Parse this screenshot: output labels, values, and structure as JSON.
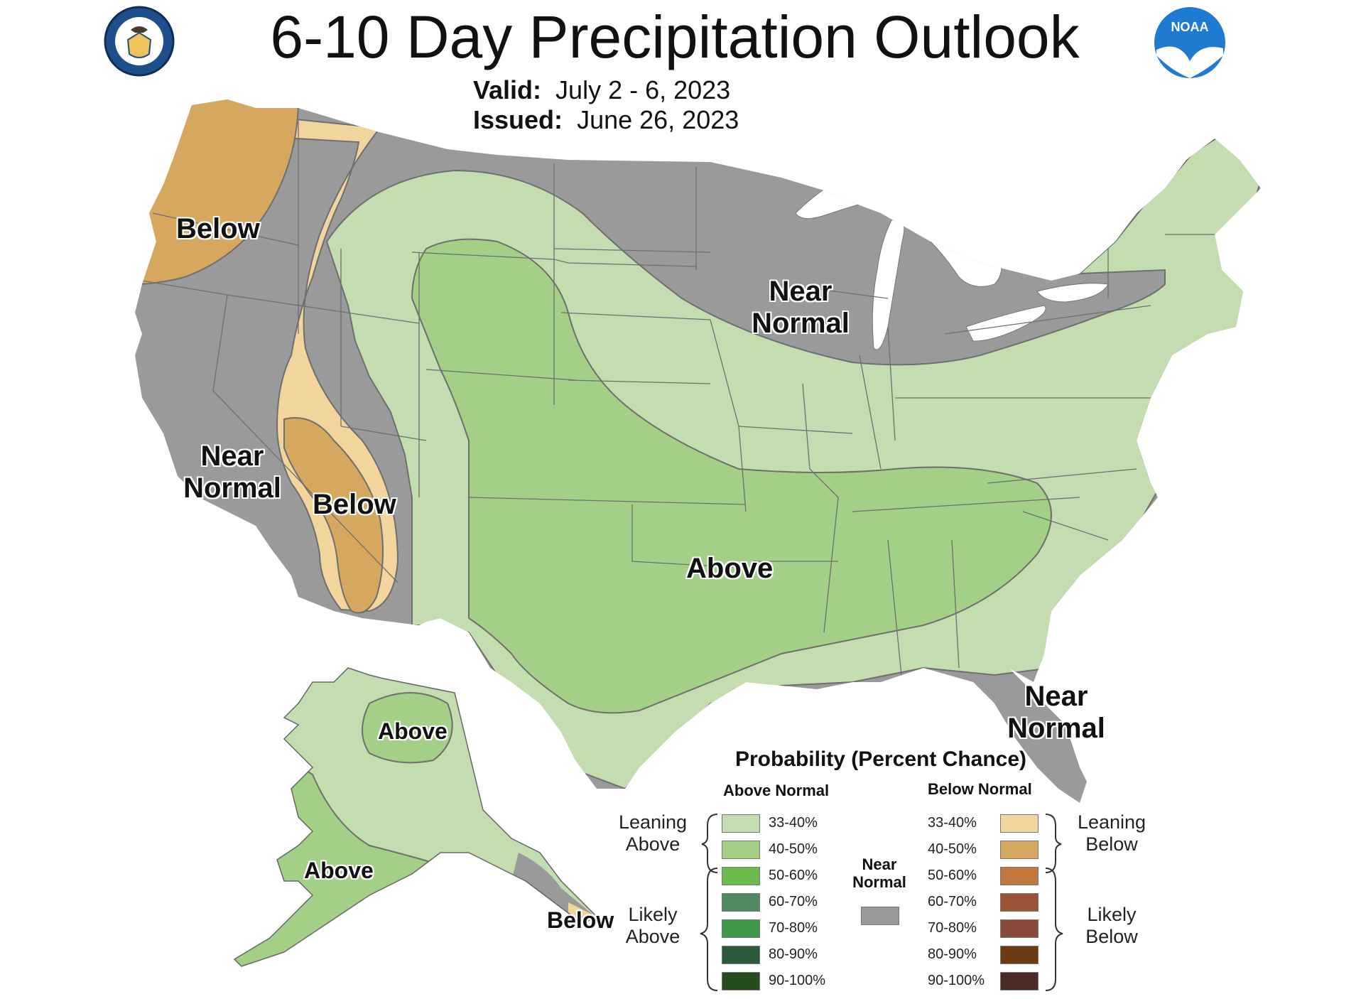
{
  "title": "6-10 Day Precipitation Outlook",
  "valid_label": "Valid:",
  "valid_dates": "July 2 - 6, 2023",
  "issued_label": "Issued:",
  "issued_date": "June 26, 2023",
  "logos": {
    "left": "department-of-commerce-seal",
    "right": "noaa-logo",
    "right_text": "NOAA"
  },
  "regions": {
    "nw_below": "Below",
    "ca_near_1": "Near",
    "ca_near_2": "Normal",
    "sw_below": "Below",
    "mw_near_1": "Near",
    "mw_near_2": "Normal",
    "central_above": "Above",
    "fl_near_1": "Near",
    "fl_near_2": "Normal",
    "ak_above_north": "Above",
    "ak_above_south": "Above",
    "ak_below": "Below"
  },
  "legend": {
    "title": "Probability (Percent Chance)",
    "above_header": "Above Normal",
    "below_header": "Below Normal",
    "near_header_1": "Near",
    "near_header_2": "Normal",
    "leaning_above_1": "Leaning",
    "leaning_above_2": "Above",
    "likely_above_1": "Likely",
    "likely_above_2": "Above",
    "leaning_below_1": "Leaning",
    "leaning_below_2": "Below",
    "likely_below_1": "Likely",
    "likely_below_2": "Below",
    "above": [
      {
        "range": "33-40%",
        "color": "#c3ddb0"
      },
      {
        "range": "40-50%",
        "color": "#a3cf86"
      },
      {
        "range": "50-60%",
        "color": "#6aba4e"
      },
      {
        "range": "60-70%",
        "color": "#4f8a60"
      },
      {
        "range": "70-80%",
        "color": "#3c9a48"
      },
      {
        "range": "80-90%",
        "color": "#2e5a3c"
      },
      {
        "range": "90-100%",
        "color": "#284d1d"
      }
    ],
    "below": [
      {
        "range": "33-40%",
        "color": "#f2d59d"
      },
      {
        "range": "40-50%",
        "color": "#d6a75e"
      },
      {
        "range": "50-60%",
        "color": "#c2773e"
      },
      {
        "range": "60-70%",
        "color": "#9c5234"
      },
      {
        "range": "70-80%",
        "color": "#8a4a3a"
      },
      {
        "range": "80-90%",
        "color": "#6e3a12"
      },
      {
        "range": "90-100%",
        "color": "#4a2a24"
      }
    ],
    "near_color": "#999999"
  },
  "colors": {
    "near": "#9a9a9a",
    "lean_above": "#c3ddb0",
    "above_40": "#a3cf86",
    "lean_below": "#f2d59d",
    "below_40": "#d6a75e",
    "lakes": "#ffffff"
  }
}
